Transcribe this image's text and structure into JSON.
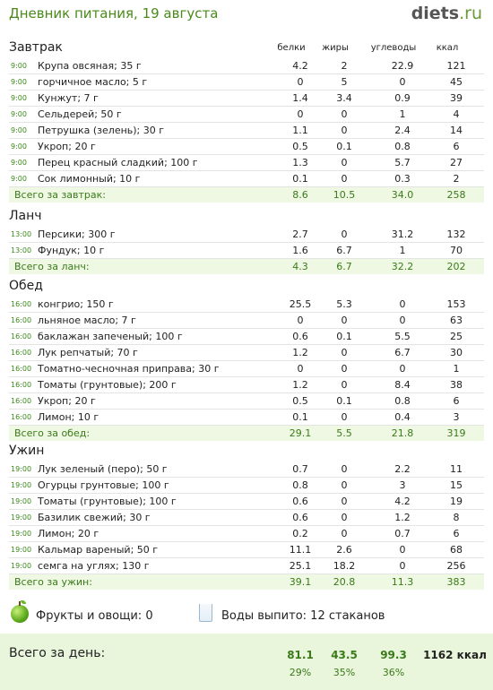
{
  "header": {
    "title": "Дневник питания, 19 августа",
    "logo_main": "diets",
    "logo_tld": ".ru"
  },
  "columns": {
    "protein": "белки",
    "fat": "жиры",
    "carbs": "углеводы",
    "kcal": "ккал"
  },
  "meals": [
    {
      "title": "Завтрак",
      "items": [
        {
          "time": "9:00",
          "food": "Крупа овсяная; 35 г",
          "protein": "4.2",
          "fat": "2",
          "carbs": "22.9",
          "kcal": "121"
        },
        {
          "time": "9:00",
          "food": "горчичное масло; 5 г",
          "protein": "0",
          "fat": "5",
          "carbs": "0",
          "kcal": "45"
        },
        {
          "time": "9:00",
          "food": "Кунжут; 7 г",
          "protein": "1.4",
          "fat": "3.4",
          "carbs": "0.9",
          "kcal": "39"
        },
        {
          "time": "9:00",
          "food": "Сельдерей; 50 г",
          "protein": "0",
          "fat": "0",
          "carbs": "1",
          "kcal": "4"
        },
        {
          "time": "9:00",
          "food": "Петрушка (зелень); 30 г",
          "protein": "1.1",
          "fat": "0",
          "carbs": "2.4",
          "kcal": "14"
        },
        {
          "time": "9:00",
          "food": "Укроп; 20 г",
          "protein": "0.5",
          "fat": "0.1",
          "carbs": "0.8",
          "kcal": "6"
        },
        {
          "time": "9:00",
          "food": "Перец красный сладкий; 100 г",
          "protein": "1.3",
          "fat": "0",
          "carbs": "5.7",
          "kcal": "27"
        },
        {
          "time": "9:00",
          "food": "Сок лимонный; 10 г",
          "protein": "0.1",
          "fat": "0",
          "carbs": "0.3",
          "kcal": "2"
        }
      ],
      "total": {
        "label": "Всего за завтрак:",
        "protein": "8.6",
        "fat": "10.5",
        "carbs": "34.0",
        "kcal": "258"
      }
    },
    {
      "title": "Ланч",
      "items": [
        {
          "time": "13:00",
          "food": "Персики; 300 г",
          "protein": "2.7",
          "fat": "0",
          "carbs": "31.2",
          "kcal": "132"
        },
        {
          "time": "13:00",
          "food": "Фундук; 10 г",
          "protein": "1.6",
          "fat": "6.7",
          "carbs": "1",
          "kcal": "70"
        }
      ],
      "total": {
        "label": "Всего за ланч:",
        "protein": "4.3",
        "fat": "6.7",
        "carbs": "32.2",
        "kcal": "202"
      }
    },
    {
      "title": "Обед",
      "items": [
        {
          "time": "16:00",
          "food": "конгрио; 150 г",
          "protein": "25.5",
          "fat": "5.3",
          "carbs": "0",
          "kcal": "153"
        },
        {
          "time": "16:00",
          "food": "льняное масло; 7 г",
          "protein": "0",
          "fat": "0",
          "carbs": "0",
          "kcal": "63"
        },
        {
          "time": "16:00",
          "food": "баклажан запеченый; 100 г",
          "protein": "0.6",
          "fat": "0.1",
          "carbs": "5.5",
          "kcal": "25"
        },
        {
          "time": "16:00",
          "food": "Лук репчатый; 70 г",
          "protein": "1.2",
          "fat": "0",
          "carbs": "6.7",
          "kcal": "30"
        },
        {
          "time": "16:00",
          "food": "Томатно-чесночная приправа; 30 г",
          "protein": "0",
          "fat": "0",
          "carbs": "0",
          "kcal": "1"
        },
        {
          "time": "16:00",
          "food": "Томаты (грунтовые); 200 г",
          "protein": "1.2",
          "fat": "0",
          "carbs": "8.4",
          "kcal": "38"
        },
        {
          "time": "16:00",
          "food": "Укроп; 20 г",
          "protein": "0.5",
          "fat": "0.1",
          "carbs": "0.8",
          "kcal": "6"
        },
        {
          "time": "16:00",
          "food": "Лимон; 10 г",
          "protein": "0.1",
          "fat": "0",
          "carbs": "0.4",
          "kcal": "3"
        }
      ],
      "total": {
        "label": "Всего за обед:",
        "protein": "29.1",
        "fat": "5.5",
        "carbs": "21.8",
        "kcal": "319"
      }
    },
    {
      "title": "Ужин",
      "items": [
        {
          "time": "19:00",
          "food": "Лук зеленый (перо); 50 г",
          "protein": "0.7",
          "fat": "0",
          "carbs": "2.2",
          "kcal": "11"
        },
        {
          "time": "19:00",
          "food": "Огурцы грунтовые; 100 г",
          "protein": "0.8",
          "fat": "0",
          "carbs": "3",
          "kcal": "15"
        },
        {
          "time": "19:00",
          "food": "Томаты (грунтовые); 100 г",
          "protein": "0.6",
          "fat": "0",
          "carbs": "4.2",
          "kcal": "19"
        },
        {
          "time": "19:00",
          "food": "Базилик свежий; 30 г",
          "protein": "0.6",
          "fat": "0",
          "carbs": "1.2",
          "kcal": "8"
        },
        {
          "time": "19:00",
          "food": "Лимон; 20 г",
          "protein": "0.2",
          "fat": "0",
          "carbs": "0.7",
          "kcal": "6"
        },
        {
          "time": "19:00",
          "food": "Кальмар вареный; 50 г",
          "protein": "11.1",
          "fat": "2.6",
          "carbs": "0",
          "kcal": "68"
        },
        {
          "time": "19:00",
          "food": "семга на углях; 130 г",
          "protein": "25.1",
          "fat": "18.2",
          "carbs": "0",
          "kcal": "256"
        }
      ],
      "total": {
        "label": "Всего за ужин:",
        "protein": "39.1",
        "fat": "20.8",
        "carbs": "11.3",
        "kcal": "383"
      }
    }
  ],
  "summary": {
    "fruits": "Фрукты и овощи: 0",
    "water": "Воды выпито: 12 стаканов"
  },
  "day_total": {
    "label": "Всего за день:",
    "protein": "81.1",
    "fat": "43.5",
    "carbs": "99.3",
    "kcal": "1162 ккал",
    "protein_pct": "29%",
    "fat_pct": "35%",
    "carbs_pct": "36%"
  },
  "icons": {
    "fruit": "apple-icon",
    "water": "glass-icon"
  },
  "colors": {
    "accent": "#4a8a1a",
    "total_bg": "#eef8e2"
  }
}
